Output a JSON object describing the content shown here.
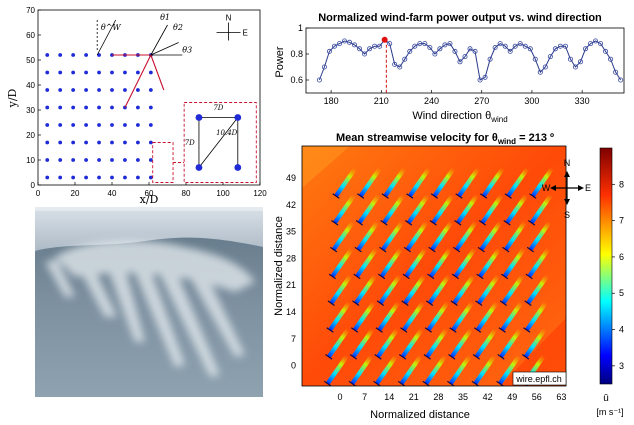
{
  "layout_panel": {
    "xlabel": "x/D",
    "ylabel": "y/D",
    "x_ticks": [
      "0",
      "20",
      "40",
      "60",
      "80",
      "100",
      "120"
    ],
    "y_ticks": [
      "0",
      "10",
      "20",
      "30",
      "40",
      "50",
      "60",
      "70"
    ],
    "angle_labels": {
      "theta_w": "θ^W",
      "theta_1": "θ1",
      "theta_2": "θ2",
      "theta_3": "θ3"
    },
    "compass": {
      "north": "N",
      "east": "E"
    },
    "inset": {
      "top": "7D",
      "side": "7D",
      "diag": "10.4D"
    },
    "colors": {
      "turbine": "#1f2bd6",
      "highlight": "#c8102e"
    }
  },
  "chart_data": [
    {
      "type": "line",
      "title": "Normalized wind-farm power output vs. wind direction",
      "xlabel": "Wind direction θ",
      "xlabel_sub": "wind",
      "ylabel": "Power",
      "xlim": [
        165,
        355
      ],
      "ylim": [
        0.5,
        1.0
      ],
      "x_ticks": [
        "180",
        "210",
        "240",
        "270",
        "300",
        "330"
      ],
      "y_ticks": [
        "0.6",
        "0.8",
        "1"
      ],
      "marker_line_x": 213,
      "series": [
        {
          "x": [
            173,
            176,
            179,
            182,
            185,
            188,
            191,
            194,
            197,
            200,
            203,
            206,
            209,
            212,
            215,
            218,
            221,
            224,
            227,
            230,
            233,
            236,
            239,
            242,
            245,
            248,
            251,
            254,
            257,
            260,
            263,
            266,
            269,
            272,
            275,
            278,
            281,
            284,
            287,
            290,
            293,
            296,
            299,
            302,
            305,
            308,
            311,
            314,
            317,
            320,
            323,
            326,
            329,
            332,
            335,
            338,
            341,
            344,
            347,
            350,
            353
          ],
          "values": [
            0.6,
            0.7,
            0.82,
            0.86,
            0.88,
            0.9,
            0.89,
            0.87,
            0.84,
            0.8,
            0.84,
            0.86,
            0.86,
            0.91,
            0.88,
            0.72,
            0.7,
            0.76,
            0.82,
            0.86,
            0.88,
            0.88,
            0.85,
            0.8,
            0.84,
            0.87,
            0.88,
            0.82,
            0.74,
            0.78,
            0.84,
            0.82,
            0.6,
            0.62,
            0.76,
            0.85,
            0.88,
            0.86,
            0.82,
            0.86,
            0.88,
            0.86,
            0.84,
            0.76,
            0.66,
            0.7,
            0.78,
            0.84,
            0.86,
            0.86,
            0.76,
            0.7,
            0.74,
            0.84,
            0.88,
            0.9,
            0.88,
            0.82,
            0.76,
            0.66,
            0.6
          ],
          "highlight_x": 212
        }
      ]
    },
    {
      "type": "heatmap",
      "title_prefix": "Mean streamwise velocity for θ",
      "title_sub": "wind",
      "title_suffix": " = 213 º",
      "xlabel": "Normalized distance",
      "ylabel": "Normalized distance",
      "x_ticks": [
        "0",
        "7",
        "14",
        "21",
        "28",
        "35",
        "42",
        "49",
        "56",
        "63"
      ],
      "y_ticks": [
        "49",
        "42",
        "35",
        "28",
        "21",
        "14",
        "7",
        "0"
      ],
      "colorbar_ticks": [
        "3",
        "4",
        "5",
        "6",
        "7",
        "8"
      ],
      "colorbar_range": [
        2.5,
        9
      ],
      "colorbar_label": "ū",
      "colorbar_unit": "[m s⁻¹]",
      "watermark": "wire.epfl.ch",
      "compass": {
        "north": "N",
        "south": "S",
        "east": "E",
        "west": "W"
      }
    }
  ],
  "photo": {
    "caption": ""
  }
}
